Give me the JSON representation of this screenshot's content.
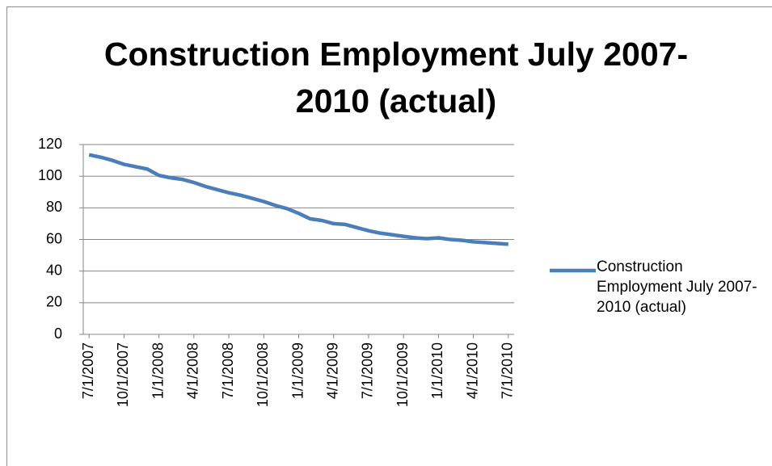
{
  "chart_data": {
    "type": "line",
    "title": "Construction Employment July 2007-2010 (actual)",
    "categories": [
      "7/1/2007",
      null,
      null,
      "10/1/2007",
      null,
      null,
      "1/1/2008",
      null,
      null,
      "4/1/2008",
      null,
      null,
      "7/1/2008",
      null,
      null,
      "10/1/2008",
      null,
      null,
      "1/1/2009",
      null,
      null,
      "4/1/2009",
      null,
      null,
      "7/1/2009",
      null,
      null,
      "10/1/2009",
      null,
      null,
      "1/1/2010",
      null,
      null,
      "4/1/2010",
      null,
      null,
      "7/1/2010"
    ],
    "series": [
      {
        "name": "Construction Employment July 2007-2010 (actual)",
        "color": "#4a7ebb",
        "values": [
          113.5,
          112,
          110,
          107.5,
          106,
          104.5,
          100.5,
          99,
          98,
          96,
          93.5,
          91.5,
          89.5,
          88,
          86,
          84,
          81.5,
          79.5,
          76.5,
          73,
          72,
          70,
          69.5,
          67.5,
          65.5,
          64,
          63,
          62,
          61,
          60.5,
          61,
          60,
          59.5,
          58.5,
          58,
          57.5,
          57
        ]
      }
    ],
    "ylim": [
      0,
      120
    ],
    "yticks": [
      0,
      20,
      40,
      60,
      80,
      100,
      120
    ],
    "grid": true,
    "legend": "right"
  }
}
